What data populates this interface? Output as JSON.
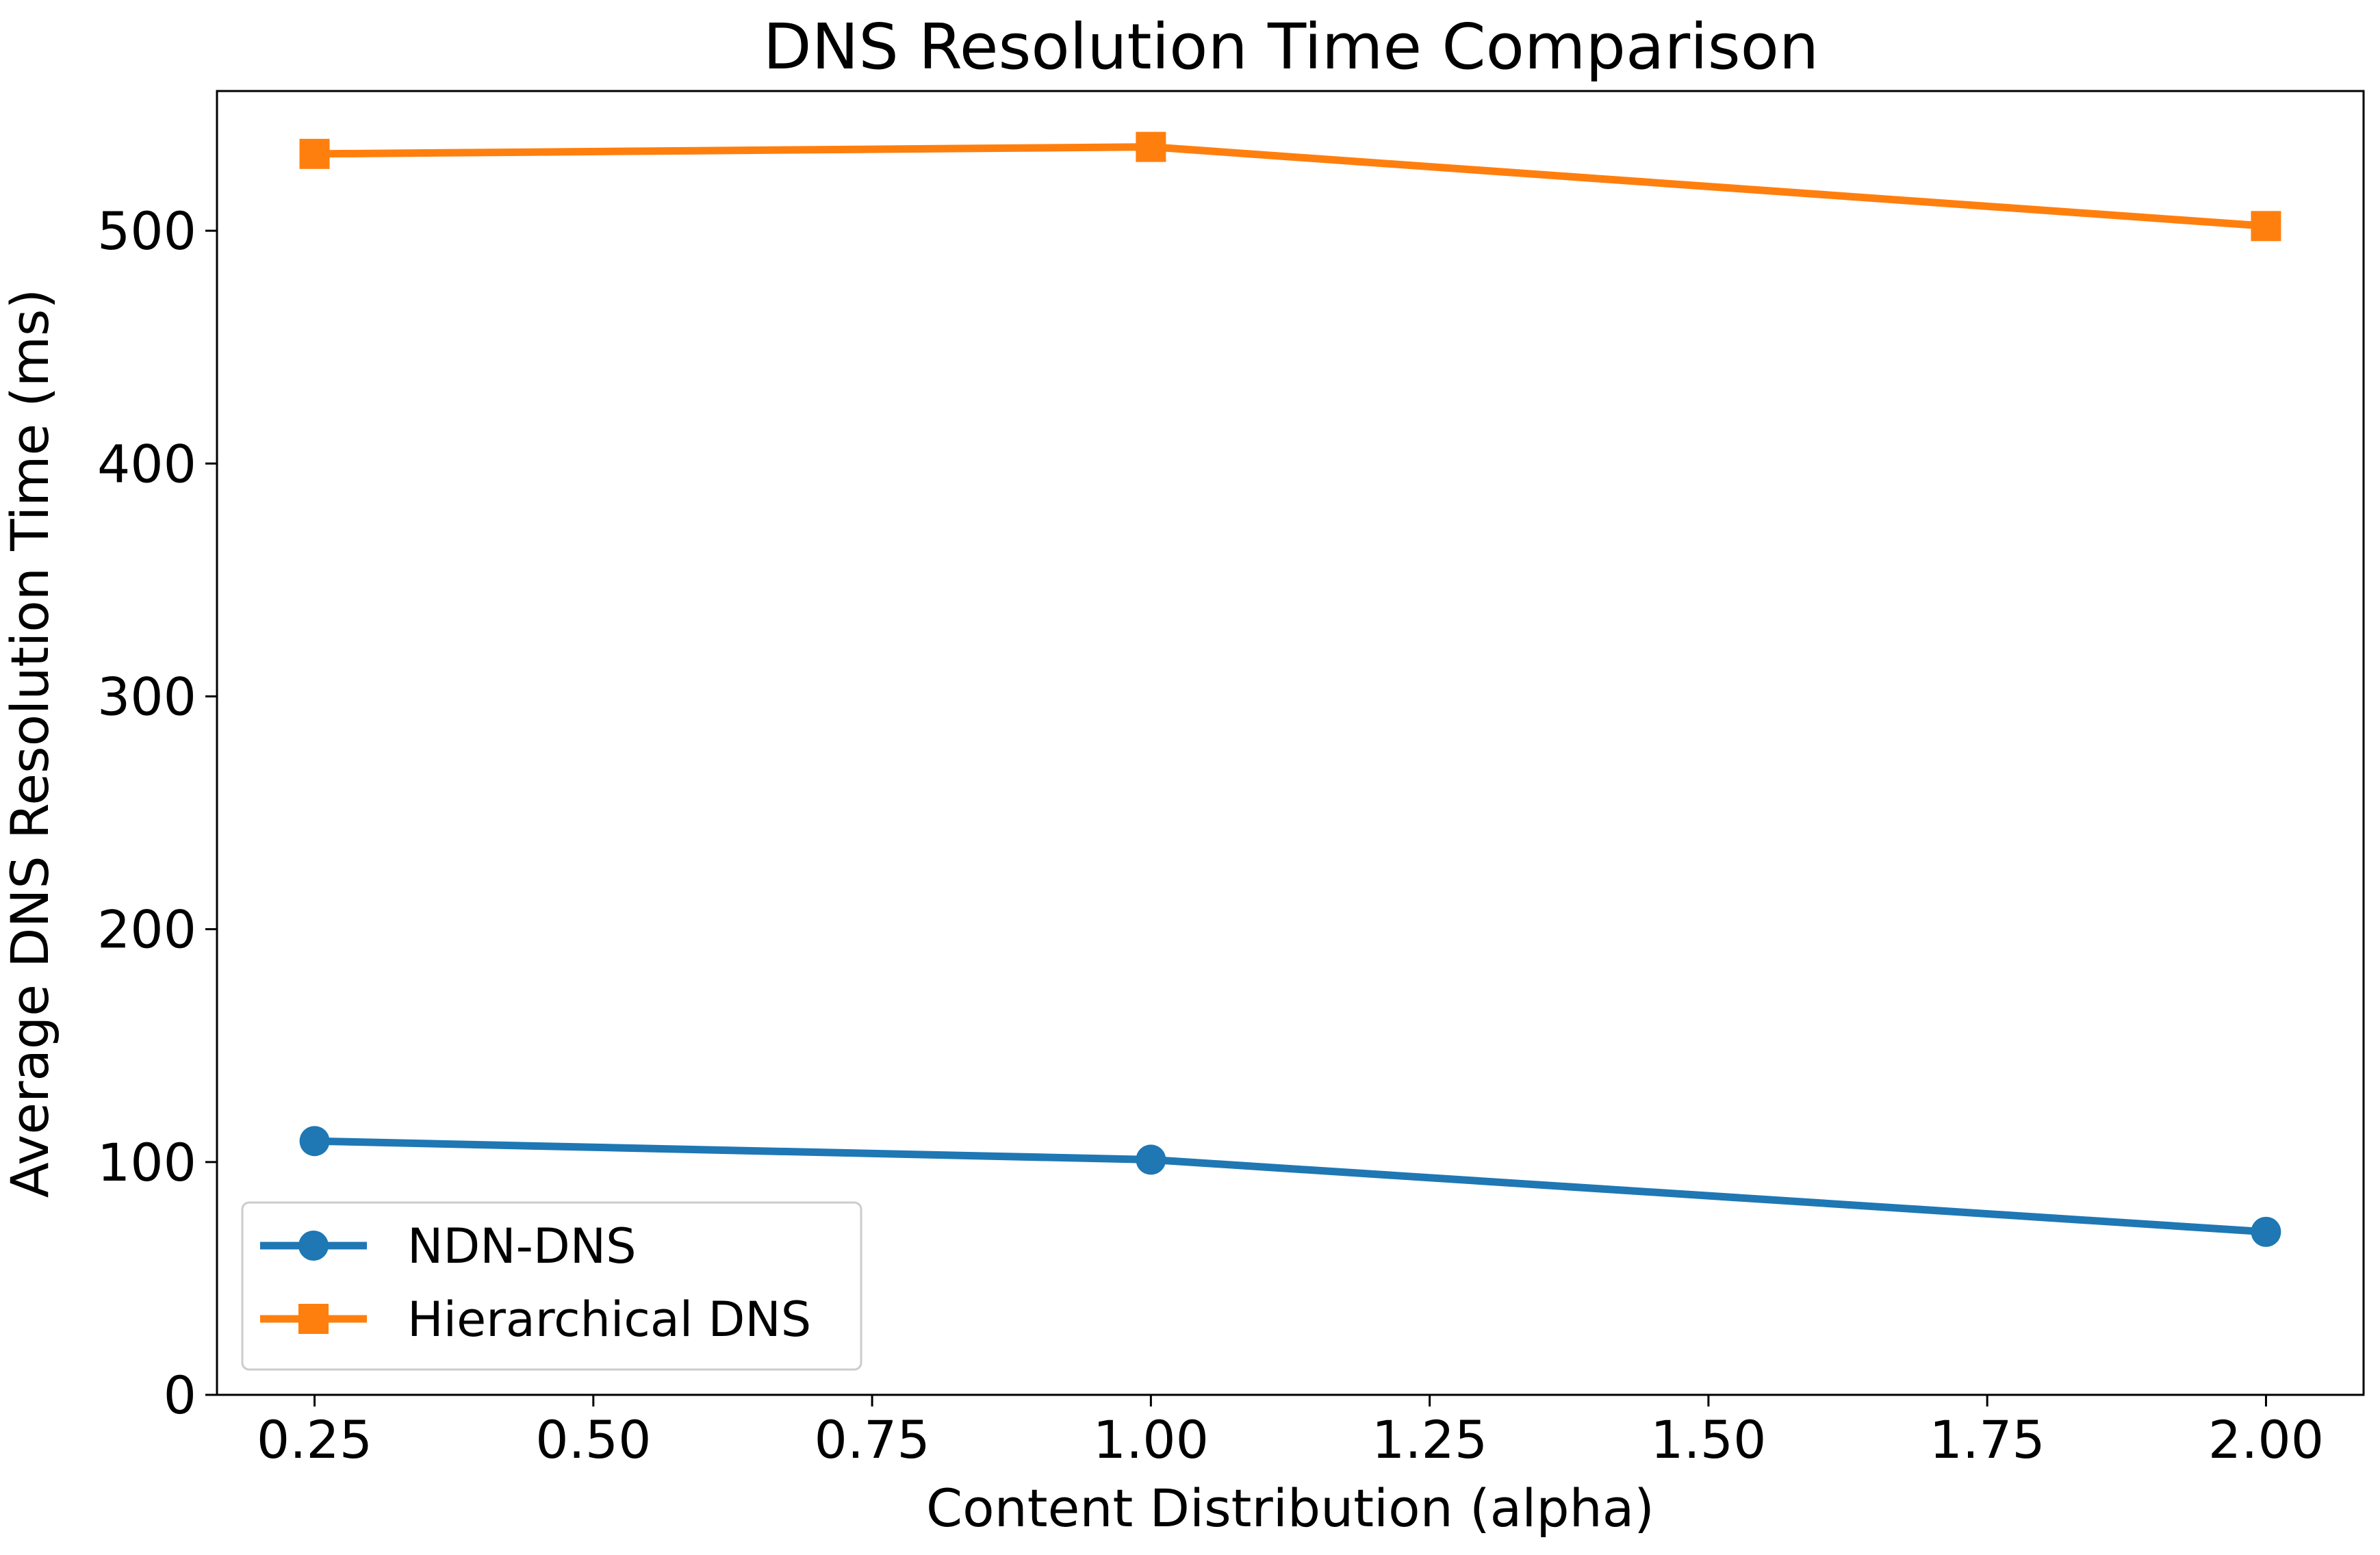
{
  "chart_data": {
    "type": "line",
    "title": "DNS Resolution Time Comparison",
    "xlabel": "Content Distribution (alpha)",
    "ylabel": "Average DNS Resolution Time (ms)",
    "x": [
      0.25,
      1.0,
      2.0
    ],
    "xlim": [
      0.1625,
      2.0875
    ],
    "ylim": [
      0,
      560
    ],
    "xticks": [
      0.25,
      0.5,
      0.75,
      1.0,
      1.25,
      1.5,
      1.75,
      2.0
    ],
    "xtick_labels": [
      "0.25",
      "0.50",
      "0.75",
      "1.00",
      "1.25",
      "1.50",
      "1.75",
      "2.00"
    ],
    "yticks": [
      0,
      100,
      200,
      300,
      400,
      500
    ],
    "ytick_labels": [
      "0",
      "100",
      "200",
      "300",
      "400",
      "500"
    ],
    "grid": false,
    "legend_position": "lower-left",
    "series": [
      {
        "name": "NDN-DNS",
        "values": [
          109,
          101,
          70
        ],
        "color": "#1f77b4",
        "marker": "circle"
      },
      {
        "name": "Hierarchical DNS",
        "values": [
          533,
          536,
          502
        ],
        "color": "#ff7f0e",
        "marker": "square"
      }
    ]
  }
}
